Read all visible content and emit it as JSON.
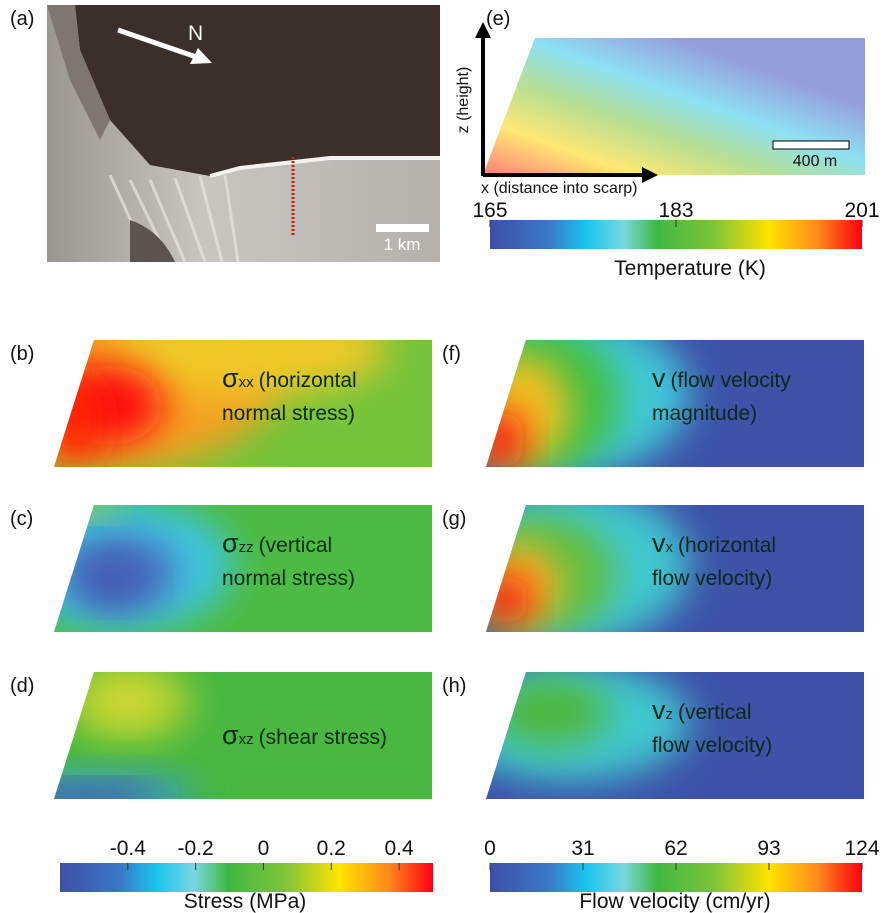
{
  "panels": [
    {
      "label": "(a)",
      "north": "N",
      "scale": "1 km"
    },
    {
      "label": "(e)",
      "y_axis": "z (height)",
      "x_axis": "x (distance into scarp)",
      "scale": "400 m"
    },
    {
      "label": "(b)",
      "symbol": "σ",
      "subscript": "xx",
      "lines": [
        "(horizontal",
        "normal stress)"
      ]
    },
    {
      "label": "(c)",
      "symbol": "σ",
      "subscript": "zz",
      "lines": [
        "(vertical",
        "normal stress)"
      ]
    },
    {
      "label": "(d)",
      "symbol": "σ",
      "subscript": "xz",
      "lines": [
        "(shear stress)"
      ]
    },
    {
      "label": "(f)",
      "symbol": "v",
      "lines": [
        "(flow velocity",
        "magnitude)"
      ]
    },
    {
      "label": "(g)",
      "symbol": "v",
      "subscript": "x",
      "lines": [
        "(horizontal",
        "flow velocity)"
      ]
    },
    {
      "label": "(h)",
      "symbol": "v",
      "subscript": "z",
      "lines": [
        "(vertical",
        "flow velocity)"
      ]
    }
  ],
  "colorbars": [
    {
      "label": "Temperature (K)",
      "lim": [
        165,
        201
      ],
      "ticks": [
        165,
        183,
        201
      ]
    },
    {
      "label": "Stress (MPa)",
      "lim": [
        -0.6,
        0.5
      ],
      "ticks": [
        -0.4,
        -0.2,
        0,
        0.2,
        0.4
      ]
    },
    {
      "label": "Flow velocity (cm/yr)",
      "lim": [
        0,
        124
      ],
      "ticks": [
        0,
        31,
        62,
        93,
        124
      ]
    }
  ]
}
